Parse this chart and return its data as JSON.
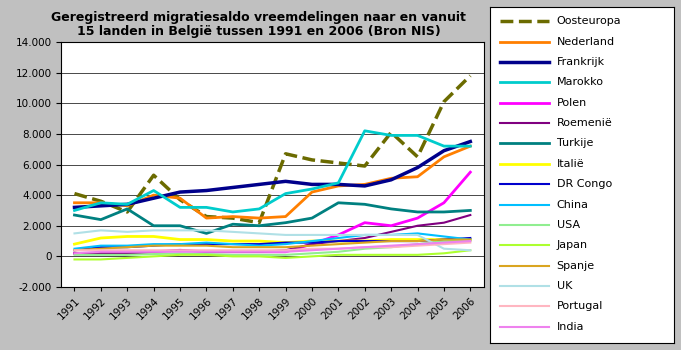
{
  "title": "Geregistreerd migratiesaldo vreemdelingen naar en vanuit\n15 landen in België tussen 1991 en 2006 (Bron NIS)",
  "years": [
    1991,
    1992,
    1993,
    1994,
    1995,
    1996,
    1997,
    1998,
    1999,
    2000,
    2001,
    2002,
    2003,
    2004,
    2005,
    2006
  ],
  "series": {
    "Oosteuropa": [
      4100,
      3600,
      2900,
      5300,
      3700,
      2600,
      2500,
      2200,
      6700,
      6300,
      6100,
      5900,
      8100,
      6500,
      10100,
      11800
    ],
    "Nederland": [
      3500,
      3500,
      3300,
      4000,
      3800,
      2500,
      2600,
      2500,
      2600,
      4200,
      4600,
      4700,
      5100,
      5200,
      6500,
      7200
    ],
    "Frankrijk": [
      3200,
      3300,
      3400,
      3800,
      4200,
      4300,
      4500,
      4700,
      4900,
      4700,
      4700,
      4600,
      5000,
      5800,
      6900,
      7500
    ],
    "Marokko": [
      3000,
      3500,
      3400,
      4300,
      3200,
      3200,
      2900,
      3100,
      4100,
      4400,
      4800,
      8200,
      7900,
      7900,
      7200,
      7200
    ],
    "Polen": [
      200,
      200,
      200,
      300,
      400,
      300,
      300,
      300,
      300,
      800,
      1400,
      2200,
      2000,
      2500,
      3500,
      5500
    ],
    "Roemenië": [
      200,
      200,
      200,
      300,
      400,
      300,
      300,
      300,
      400,
      800,
      1000,
      1200,
      1600,
      2000,
      2200,
      2700
    ],
    "Turkije": [
      2700,
      2400,
      3100,
      2000,
      2000,
      1500,
      2100,
      2000,
      2200,
      2500,
      3500,
      3400,
      3100,
      2900,
      2900,
      3000
    ],
    "Italië": [
      800,
      1200,
      1300,
      1300,
      1100,
      1100,
      1000,
      1000,
      900,
      1000,
      1000,
      1000,
      1100,
      1100,
      1100,
      1100
    ],
    "DR Congo": [
      400,
      600,
      600,
      700,
      800,
      800,
      800,
      800,
      900,
      900,
      1000,
      1000,
      1000,
      1000,
      1100,
      1200
    ],
    "China": [
      500,
      700,
      700,
      800,
      800,
      900,
      800,
      700,
      800,
      1000,
      1200,
      1400,
      1400,
      1500,
      1300,
      1100
    ],
    "USA": [
      100,
      100,
      100,
      150,
      200,
      150,
      100,
      100,
      100,
      200,
      300,
      500,
      600,
      800,
      1000,
      1000
    ],
    "Japan": [
      -200,
      -200,
      -100,
      0,
      100,
      100,
      0,
      0,
      -100,
      0,
      100,
      100,
      100,
      100,
      200,
      400
    ],
    "Spanje": [
      400,
      500,
      600,
      700,
      700,
      700,
      600,
      600,
      600,
      700,
      800,
      900,
      1000,
      1000,
      1100,
      1100
    ],
    "UK": [
      1500,
      1700,
      1600,
      1700,
      1700,
      1700,
      1600,
      1500,
      1400,
      1400,
      1400,
      1400,
      1400,
      1400,
      500,
      400
    ],
    "Portugal": [
      400,
      400,
      400,
      400,
      400,
      400,
      400,
      400,
      400,
      500,
      500,
      600,
      600,
      700,
      800,
      900
    ],
    "India": [
      200,
      300,
      300,
      300,
      300,
      300,
      300,
      300,
      300,
      400,
      500,
      600,
      700,
      800,
      900,
      1000
    ]
  },
  "colors": {
    "Oosteuropa": "#6B6B00",
    "Nederland": "#FF7F00",
    "Frankrijk": "#00008B",
    "Marokko": "#00CCCC",
    "Polen": "#FF00FF",
    "Roemenië": "#800080",
    "Turkije": "#008080",
    "Italië": "#FFFF00",
    "DR Congo": "#0000CD",
    "China": "#00BFFF",
    "USA": "#90EE90",
    "Japan": "#ADFF2F",
    "Spanje": "#DAA520",
    "UK": "#B0E0E6",
    "Portugal": "#FFB6C1",
    "India": "#EE82EE"
  },
  "linestyles": {
    "Oosteuropa": "--",
    "Nederland": "-",
    "Frankrijk": "-",
    "Marokko": "-",
    "Polen": "-",
    "Roemenië": "-",
    "Turkije": "-",
    "Italië": "-",
    "DR Congo": "-",
    "China": "-",
    "USA": "-",
    "Japan": "-",
    "Spanje": "-",
    "UK": "-",
    "Portugal": "-",
    "India": "-"
  },
  "linewidths": {
    "Oosteuropa": 2.5,
    "Nederland": 2.0,
    "Frankrijk": 2.5,
    "Marokko": 2.0,
    "Polen": 2.0,
    "Roemenië": 1.5,
    "Turkije": 2.0,
    "Italië": 2.0,
    "DR Congo": 1.5,
    "China": 1.5,
    "USA": 1.5,
    "Japan": 1.5,
    "Spanje": 1.5,
    "UK": 1.5,
    "Portugal": 1.5,
    "India": 1.5
  },
  "ylim": [
    -2000,
    14000
  ],
  "yticks": [
    -2000,
    0,
    2000,
    4000,
    6000,
    8000,
    10000,
    12000,
    14000
  ],
  "fig_bg_color": "#C0C0C0",
  "plot_bg_color": "#FFFFFF",
  "title_fontsize": 9.0,
  "legend_fontsize": 8.0,
  "tick_fontsize": 7.5
}
